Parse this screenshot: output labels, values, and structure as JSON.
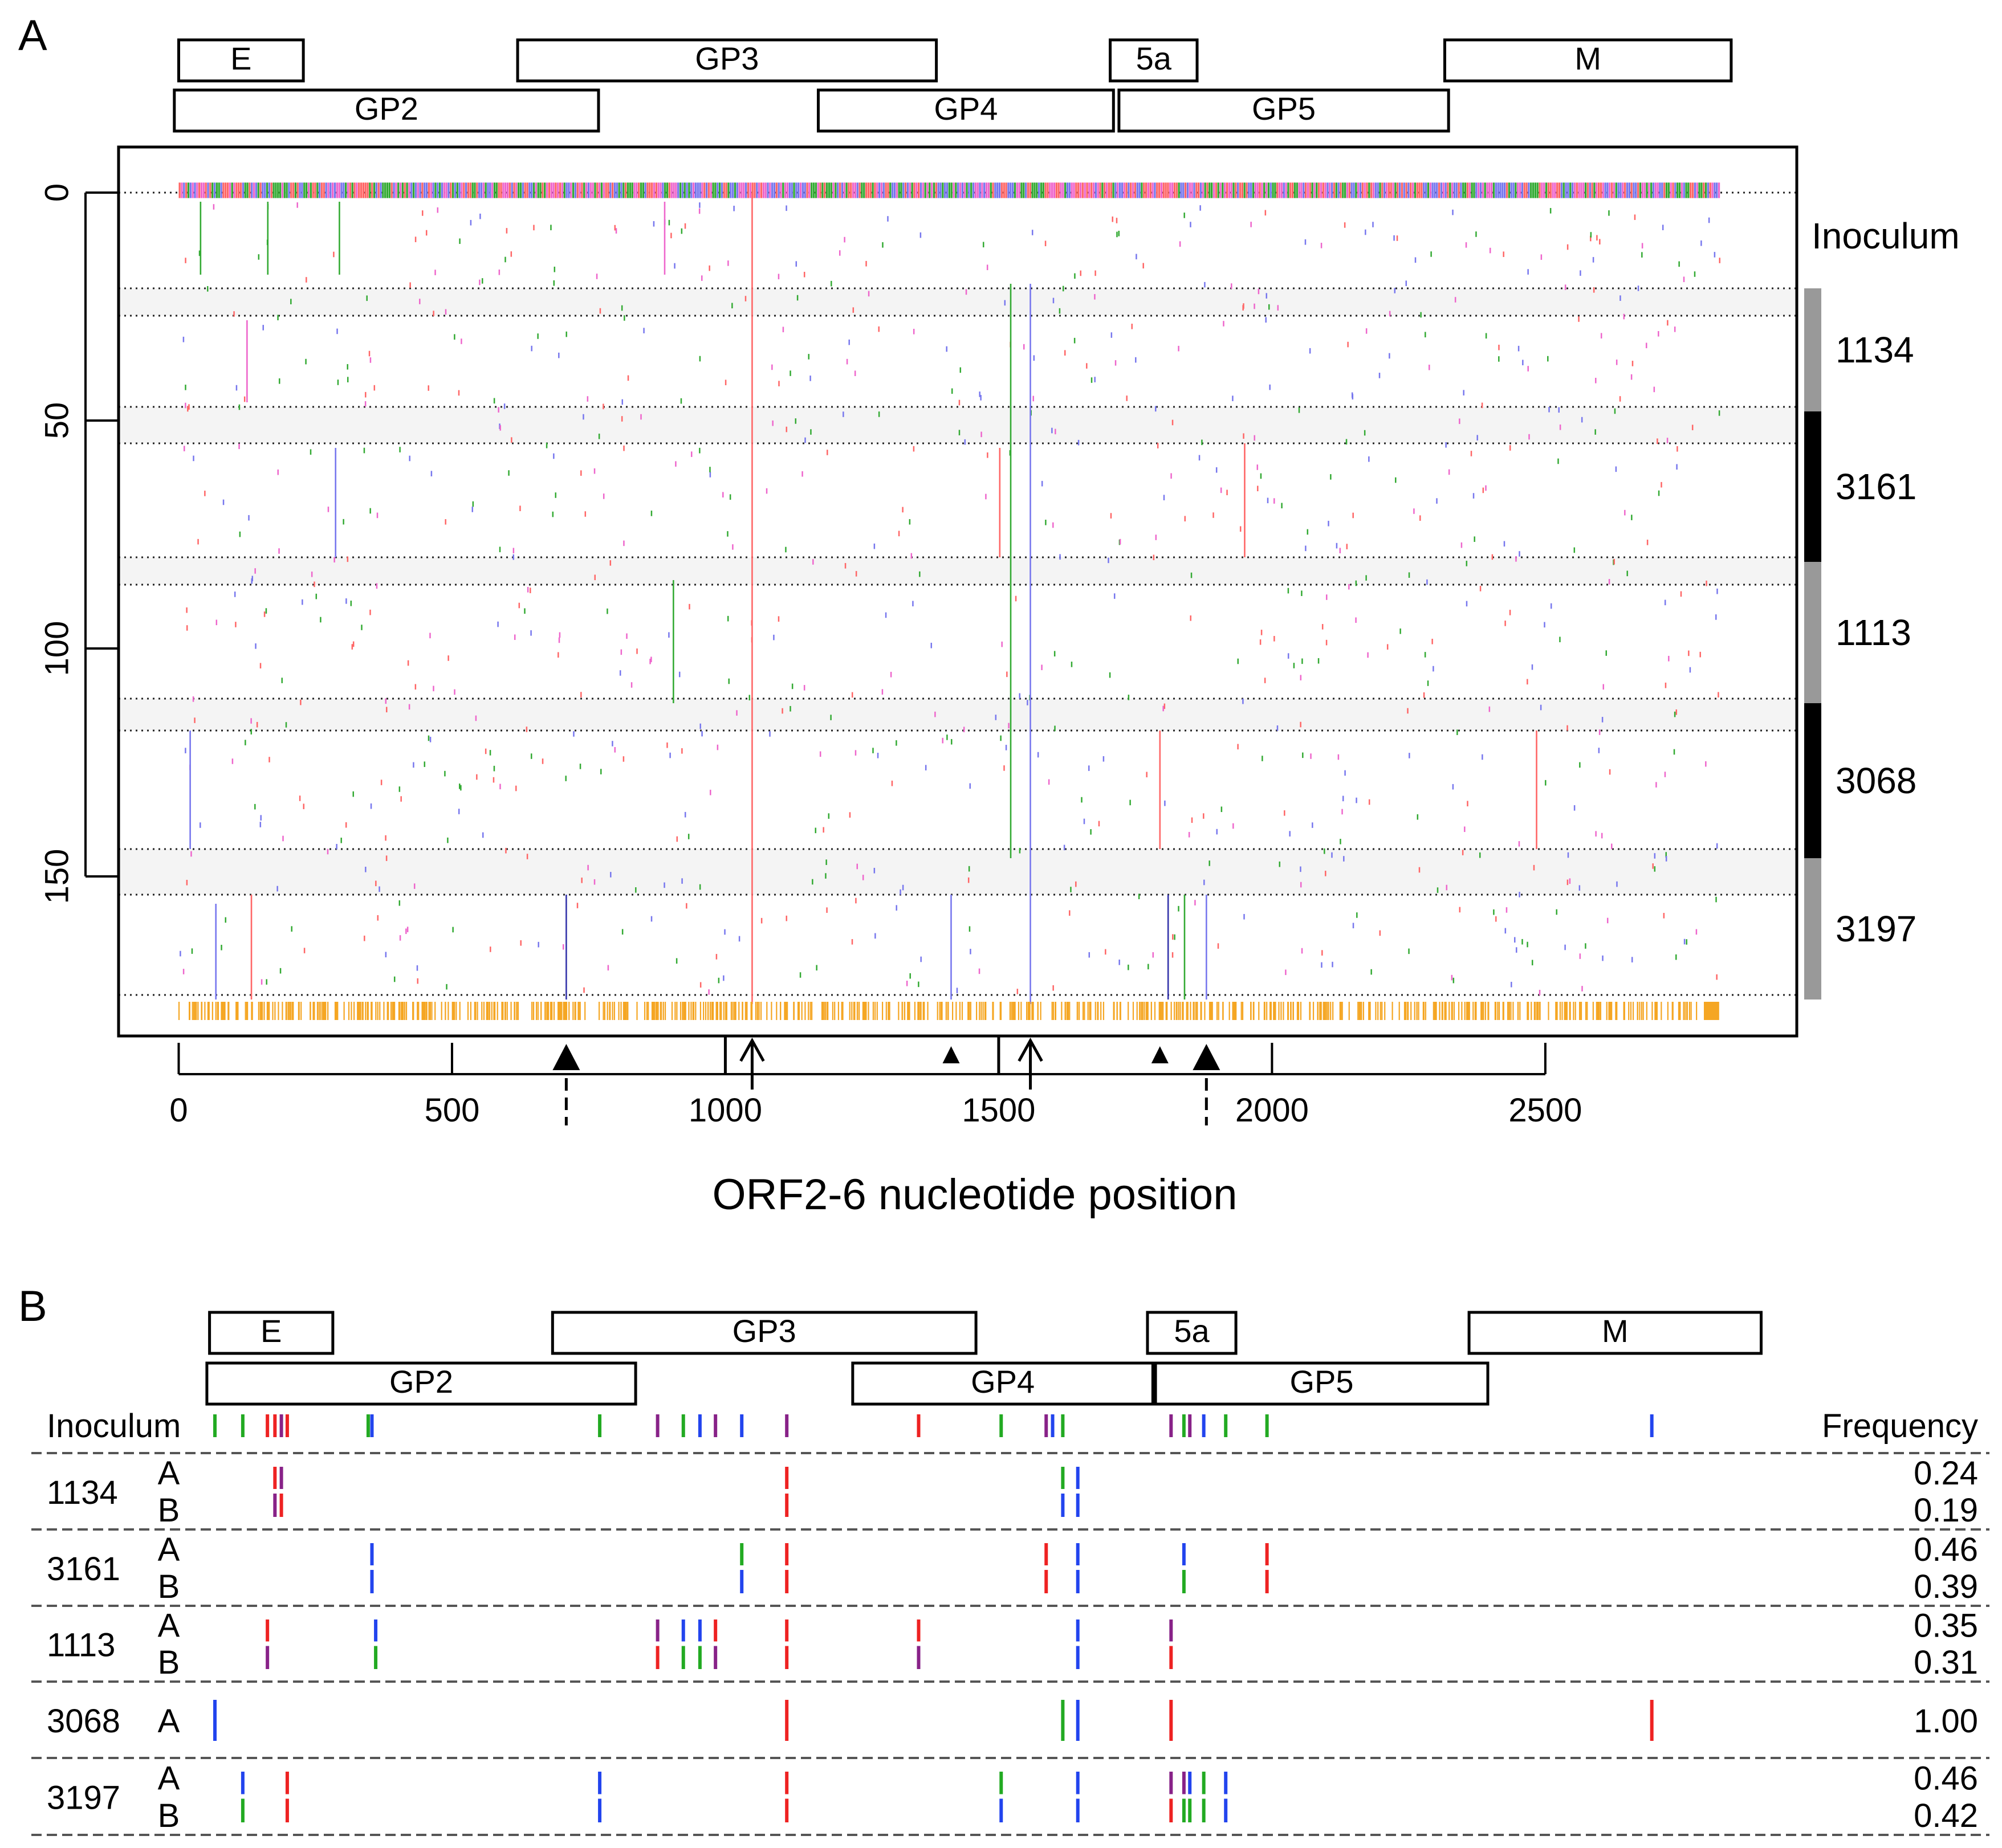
{
  "chart_data": [
    {
      "panel": "A",
      "type": "scatter",
      "panel_label": "A",
      "title": "",
      "xlabel": "ORF2-6 nucleotide position",
      "ylabel": "",
      "xlim": [
        -110,
        2960
      ],
      "ylim": [
        -10,
        185
      ],
      "xticks": [
        0,
        500,
        1000,
        1500,
        2000,
        2500
      ],
      "yticks": [
        0,
        50,
        100,
        150
      ],
      "sidebar_title": "Inoculum",
      "genes_row1": [
        {
          "name": "E",
          "start": 0,
          "end": 228
        },
        {
          "name": "GP3",
          "start": 620,
          "end": 1386
        },
        {
          "name": "5a",
          "start": 1704,
          "end": 1863
        },
        {
          "name": "M",
          "start": 2316,
          "end": 2840
        }
      ],
      "genes_row2": [
        {
          "name": "GP2",
          "start": -8,
          "end": 768
        },
        {
          "name": "GP4",
          "start": 1170,
          "end": 1710
        },
        {
          "name": "GP5",
          "start": 1720,
          "end": 2323
        }
      ],
      "inoculum_groups": [
        {
          "label": "1134",
          "y_start": 21,
          "y_end": 48,
          "shade": "#999999"
        },
        {
          "label": "3161",
          "y_start": 48,
          "y_end": 81,
          "shade": "#000000"
        },
        {
          "label": "1113",
          "y_start": 81,
          "y_end": 112,
          "shade": "#999999"
        },
        {
          "label": "3068",
          "y_start": 112,
          "y_end": 146,
          "shade": "#000000"
        },
        {
          "label": "3197",
          "y_start": 146,
          "y_end": 177,
          "shade": "#999999"
        }
      ],
      "shaded_bands": [
        [
          21,
          27
        ],
        [
          47,
          55
        ],
        [
          80,
          86
        ],
        [
          111,
          118
        ],
        [
          144,
          154
        ]
      ],
      "reference_row": 0,
      "bottom_row": 178,
      "vertical_segments": [
        {
          "x": 1049,
          "y1": 0,
          "y2": 178,
          "color": "#ff6666"
        },
        {
          "x": 1558,
          "y1": 20,
          "y2": 178,
          "color": "#7777ee"
        },
        {
          "x": 1522,
          "y1": 20,
          "y2": 146,
          "color": "#33aa33"
        },
        {
          "x": 287,
          "y1": 56,
          "y2": 80,
          "color": "#7777ee"
        },
        {
          "x": 21,
          "y1": 118,
          "y2": 144,
          "color": "#7777ee"
        },
        {
          "x": 1502,
          "y1": 56,
          "y2": 80,
          "color": "#ff6666"
        },
        {
          "x": 1950,
          "y1": 55,
          "y2": 80,
          "color": "#ff6666"
        },
        {
          "x": 1795,
          "y1": 118,
          "y2": 144,
          "color": "#ff6666"
        },
        {
          "x": 2484,
          "y1": 118,
          "y2": 144,
          "color": "#ff6666"
        },
        {
          "x": 709,
          "y1": 154,
          "y2": 177,
          "color": "#3333aa"
        },
        {
          "x": 1413,
          "y1": 154,
          "y2": 177,
          "color": "#7777ee"
        },
        {
          "x": 1810,
          "y1": 154,
          "y2": 177,
          "color": "#3333aa"
        },
        {
          "x": 1840,
          "y1": 154,
          "y2": 177,
          "color": "#33aa33"
        },
        {
          "x": 1880,
          "y1": 154,
          "y2": 177,
          "color": "#7777ee"
        },
        {
          "x": 133,
          "y1": 154,
          "y2": 177,
          "color": "#ff6666"
        },
        {
          "x": 68,
          "y1": 156,
          "y2": 177,
          "color": "#7777ee"
        },
        {
          "x": 40,
          "y1": 2,
          "y2": 18,
          "color": "#33aa33"
        },
        {
          "x": 163,
          "y1": 2,
          "y2": 18,
          "color": "#33aa33"
        },
        {
          "x": 294,
          "y1": 2,
          "y2": 18,
          "color": "#33aa33"
        },
        {
          "x": 125,
          "y1": 28,
          "y2": 46,
          "color": "#ee66cc"
        },
        {
          "x": 889,
          "y1": 2,
          "y2": 18,
          "color": "#ee66cc"
        },
        {
          "x": 905,
          "y1": 85,
          "y2": 112,
          "color": "#33aa33"
        }
      ],
      "markers": {
        "arrows": [
          1049,
          1558
        ],
        "triangles_large": [
          709,
          1880
        ],
        "triangles_small": [
          1413,
          1795
        ],
        "ticks": [
          1000,
          1500
        ]
      }
    },
    {
      "panel": "B",
      "type": "table",
      "panel_label": "B",
      "xlim": [
        -40,
        2970
      ],
      "header_left": "Inoculum",
      "header_right": "Frequency",
      "genes_row1": [
        {
          "name": "E",
          "start": 0,
          "end": 230
        },
        {
          "name": "GP3",
          "start": 640,
          "end": 1430
        },
        {
          "name": "5a",
          "start": 1750,
          "end": 1915
        },
        {
          "name": "M",
          "start": 2350,
          "end": 2895
        }
      ],
      "genes_row2": [
        {
          "name": "GP2",
          "start": -5,
          "end": 795
        },
        {
          "name": "GP4",
          "start": 1200,
          "end": 1760
        },
        {
          "name": "GP5",
          "start": 1765,
          "end": 2385
        }
      ],
      "header_positions": [
        {
          "x": 10,
          "color": "#22aa22"
        },
        {
          "x": 62,
          "color": "#22aa22"
        },
        {
          "x": 108,
          "color": "#ee2222"
        },
        {
          "x": 122,
          "color": "#ee2222"
        },
        {
          "x": 134,
          "color": "#882288"
        },
        {
          "x": 145,
          "color": "#ee2222"
        },
        {
          "x": 296,
          "color": "#22aa22"
        },
        {
          "x": 303,
          "color": "#2244ee"
        },
        {
          "x": 728,
          "color": "#22aa22"
        },
        {
          "x": 836,
          "color": "#882288"
        },
        {
          "x": 884,
          "color": "#22aa22"
        },
        {
          "x": 915,
          "color": "#2244ee"
        },
        {
          "x": 944,
          "color": "#882288"
        },
        {
          "x": 993,
          "color": "#2244ee"
        },
        {
          "x": 1077,
          "color": "#882288"
        },
        {
          "x": 1323,
          "color": "#ee2222"
        },
        {
          "x": 1477,
          "color": "#22aa22"
        },
        {
          "x": 1561,
          "color": "#882288"
        },
        {
          "x": 1573,
          "color": "#2244ee"
        },
        {
          "x": 1592,
          "color": "#22aa22"
        },
        {
          "x": 1794,
          "color": "#882288"
        },
        {
          "x": 1818,
          "color": "#22aa22"
        },
        {
          "x": 1829,
          "color": "#882288"
        },
        {
          "x": 1855,
          "color": "#2244ee"
        },
        {
          "x": 1896,
          "color": "#22aa22"
        },
        {
          "x": 1973,
          "color": "#22aa22"
        },
        {
          "x": 2691,
          "color": "#2244ee"
        }
      ],
      "groups": [
        {
          "inoculum": "1134",
          "rows": [
            {
              "label": "A",
              "frequency": "0.24",
              "marks": [
                {
                  "x": 122,
                  "color": "#ee2222"
                },
                {
                  "x": 134,
                  "color": "#882288"
                },
                {
                  "x": 1077,
                  "color": "#ee2222"
                },
                {
                  "x": 1592,
                  "color": "#22aa22"
                },
                {
                  "x": 1620,
                  "color": "#2244ee"
                }
              ]
            },
            {
              "label": "B",
              "frequency": "0.19",
              "marks": [
                {
                  "x": 122,
                  "color": "#882288"
                },
                {
                  "x": 134,
                  "color": "#ee2222"
                },
                {
                  "x": 1077,
                  "color": "#ee2222"
                },
                {
                  "x": 1592,
                  "color": "#2244ee"
                },
                {
                  "x": 1620,
                  "color": "#2244ee"
                }
              ]
            }
          ]
        },
        {
          "inoculum": "3161",
          "rows": [
            {
              "label": "A",
              "frequency": "0.46",
              "marks": [
                {
                  "x": 303,
                  "color": "#2244ee"
                },
                {
                  "x": 993,
                  "color": "#22aa22"
                },
                {
                  "x": 1077,
                  "color": "#ee2222"
                },
                {
                  "x": 1561,
                  "color": "#ee2222"
                },
                {
                  "x": 1620,
                  "color": "#2244ee"
                },
                {
                  "x": 1818,
                  "color": "#2244ee"
                },
                {
                  "x": 1973,
                  "color": "#ee2222"
                }
              ]
            },
            {
              "label": "B",
              "frequency": "0.39",
              "marks": [
                {
                  "x": 303,
                  "color": "#2244ee"
                },
                {
                  "x": 993,
                  "color": "#2244ee"
                },
                {
                  "x": 1077,
                  "color": "#ee2222"
                },
                {
                  "x": 1561,
                  "color": "#ee2222"
                },
                {
                  "x": 1620,
                  "color": "#2244ee"
                },
                {
                  "x": 1818,
                  "color": "#22aa22"
                },
                {
                  "x": 1973,
                  "color": "#ee2222"
                }
              ]
            }
          ]
        },
        {
          "inoculum": "1113",
          "rows": [
            {
              "label": "A",
              "frequency": "0.35",
              "marks": [
                {
                  "x": 108,
                  "color": "#ee2222"
                },
                {
                  "x": 310,
                  "color": "#2244ee"
                },
                {
                  "x": 836,
                  "color": "#882288"
                },
                {
                  "x": 884,
                  "color": "#2244ee"
                },
                {
                  "x": 915,
                  "color": "#2244ee"
                },
                {
                  "x": 944,
                  "color": "#ee2222"
                },
                {
                  "x": 1077,
                  "color": "#ee2222"
                },
                {
                  "x": 1323,
                  "color": "#ee2222"
                },
                {
                  "x": 1620,
                  "color": "#2244ee"
                },
                {
                  "x": 1794,
                  "color": "#882288"
                }
              ]
            },
            {
              "label": "B",
              "frequency": "0.31",
              "marks": [
                {
                  "x": 108,
                  "color": "#882288"
                },
                {
                  "x": 310,
                  "color": "#22aa22"
                },
                {
                  "x": 836,
                  "color": "#ee2222"
                },
                {
                  "x": 884,
                  "color": "#22aa22"
                },
                {
                  "x": 915,
                  "color": "#22aa22"
                },
                {
                  "x": 944,
                  "color": "#882288"
                },
                {
                  "x": 1077,
                  "color": "#ee2222"
                },
                {
                  "x": 1323,
                  "color": "#882288"
                },
                {
                  "x": 1620,
                  "color": "#2244ee"
                },
                {
                  "x": 1794,
                  "color": "#ee2222"
                }
              ]
            }
          ]
        },
        {
          "inoculum": "3068",
          "rows": [
            {
              "label": "A",
              "frequency": "1.00",
              "marks": [
                {
                  "x": 10,
                  "color": "#2244ee"
                },
                {
                  "x": 1077,
                  "color": "#ee2222"
                },
                {
                  "x": 1592,
                  "color": "#22aa22"
                },
                {
                  "x": 1620,
                  "color": "#2244ee"
                },
                {
                  "x": 1794,
                  "color": "#ee2222"
                },
                {
                  "x": 2691,
                  "color": "#ee2222"
                }
              ]
            }
          ]
        },
        {
          "inoculum": "3197",
          "rows": [
            {
              "label": "A",
              "frequency": "0.46",
              "marks": [
                {
                  "x": 62,
                  "color": "#2244ee"
                },
                {
                  "x": 145,
                  "color": "#ee2222"
                },
                {
                  "x": 728,
                  "color": "#2244ee"
                },
                {
                  "x": 1077,
                  "color": "#ee2222"
                },
                {
                  "x": 1477,
                  "color": "#22aa22"
                },
                {
                  "x": 1620,
                  "color": "#2244ee"
                },
                {
                  "x": 1794,
                  "color": "#882288"
                },
                {
                  "x": 1818,
                  "color": "#882288"
                },
                {
                  "x": 1829,
                  "color": "#2244ee"
                },
                {
                  "x": 1855,
                  "color": "#22aa22"
                },
                {
                  "x": 1896,
                  "color": "#2244ee"
                }
              ]
            },
            {
              "label": "B",
              "frequency": "0.42",
              "marks": [
                {
                  "x": 62,
                  "color": "#22aa22"
                },
                {
                  "x": 145,
                  "color": "#ee2222"
                },
                {
                  "x": 728,
                  "color": "#2244ee"
                },
                {
                  "x": 1077,
                  "color": "#ee2222"
                },
                {
                  "x": 1477,
                  "color": "#2244ee"
                },
                {
                  "x": 1620,
                  "color": "#2244ee"
                },
                {
                  "x": 1794,
                  "color": "#ee2222"
                },
                {
                  "x": 1818,
                  "color": "#22aa22"
                },
                {
                  "x": 1829,
                  "color": "#22aa22"
                },
                {
                  "x": 1855,
                  "color": "#22aa22"
                },
                {
                  "x": 1896,
                  "color": "#2244ee"
                }
              ]
            }
          ]
        }
      ]
    }
  ]
}
